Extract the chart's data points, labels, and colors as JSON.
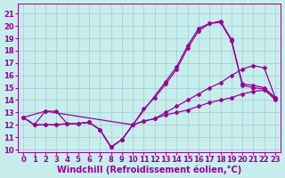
{
  "xlabel": "Windchill (Refroidissement éolien,°C)",
  "xlim": [
    -0.5,
    23.5
  ],
  "ylim": [
    9.8,
    21.8
  ],
  "xticks": [
    0,
    1,
    2,
    3,
    4,
    5,
    6,
    7,
    8,
    9,
    10,
    11,
    12,
    13,
    14,
    15,
    16,
    17,
    18,
    19,
    20,
    21,
    22,
    23
  ],
  "yticks": [
    10,
    11,
    12,
    13,
    14,
    15,
    16,
    17,
    18,
    19,
    20,
    21
  ],
  "bg_color": "#c8eded",
  "grid_color": "#9ecece",
  "line_color": "#990099",
  "line1_x": [
    0,
    1,
    2,
    3,
    4,
    5,
    6,
    7,
    8,
    9,
    10,
    11,
    12,
    13,
    14,
    15,
    16,
    17,
    18,
    19,
    20,
    21,
    22,
    23
  ],
  "line1_y": [
    12.6,
    12.0,
    12.0,
    12.0,
    12.1,
    12.1,
    12.2,
    11.6,
    10.2,
    10.8,
    12.0,
    12.3,
    12.5,
    13.0,
    13.5,
    14.0,
    14.5,
    15.0,
    15.4,
    16.0,
    16.5,
    16.8,
    16.6,
    14.2
  ],
  "line2_x": [
    0,
    2,
    10,
    13,
    14,
    15,
    16,
    17,
    18,
    19,
    20,
    21,
    22,
    23
  ],
  "line2_y": [
    12.6,
    13.1,
    12.0,
    15.5,
    16.7,
    18.4,
    19.8,
    20.2,
    20.4,
    18.9,
    15.3,
    15.2,
    15.0,
    14.2
  ],
  "line3_x": [
    0,
    1,
    2,
    3,
    4,
    5,
    6,
    7,
    8,
    9,
    10,
    11,
    12,
    13,
    14,
    15,
    16,
    17,
    18,
    19,
    20,
    21,
    22,
    23
  ],
  "line3_y": [
    12.6,
    12.0,
    13.1,
    13.1,
    12.1,
    12.1,
    12.2,
    11.6,
    10.2,
    10.8,
    12.0,
    13.3,
    14.2,
    15.3,
    16.5,
    18.2,
    19.6,
    20.2,
    20.3,
    18.8,
    15.2,
    15.0,
    14.9,
    14.0
  ],
  "line4_x": [
    0,
    1,
    2,
    3,
    4,
    5,
    6,
    7,
    8,
    9,
    10,
    11,
    12,
    13,
    14,
    15,
    16,
    17,
    18,
    19,
    20,
    21,
    22,
    23
  ],
  "line4_y": [
    12.6,
    12.0,
    12.0,
    12.0,
    12.1,
    12.1,
    12.2,
    11.6,
    10.2,
    10.8,
    12.0,
    12.3,
    12.5,
    12.8,
    13.0,
    13.2,
    13.5,
    13.8,
    14.0,
    14.2,
    14.5,
    14.7,
    14.8,
    14.2
  ],
  "tick_fontsize": 6.0,
  "xlabel_fontsize": 7.0,
  "marker": "D",
  "marker_size": 2.0,
  "linewidth": 0.9
}
